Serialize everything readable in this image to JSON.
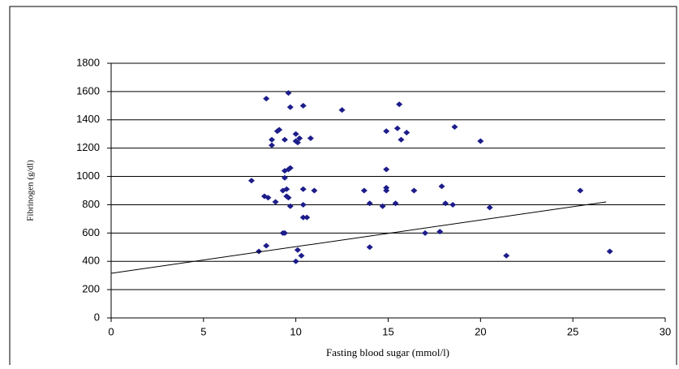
{
  "chart_data": {
    "type": "scatter",
    "x_label": "Fasting blood sugar (mmol/l)",
    "y_label": "Fibrinogen (g/dl)",
    "color": "#1c1c8a",
    "xlim": [
      0,
      30
    ],
    "xticks": [
      0,
      5,
      10,
      15,
      20,
      25,
      30
    ],
    "ylim": [
      0,
      1800
    ],
    "yticks": [
      0,
      200,
      400,
      600,
      800,
      1000,
      1200,
      1400,
      1600,
      1800
    ],
    "grid": true,
    "x": [
      8.4,
      9.6,
      9.7,
      10.4,
      12.5,
      15.6,
      9.0,
      9.1,
      8.7,
      8.7,
      9.4,
      10.0,
      10.0,
      10.2,
      10.8,
      10.1,
      14.9,
      15.5,
      16.0,
      15.7,
      18.6,
      20.0,
      9.4,
      9.6,
      9.7,
      9.4,
      7.6,
      14.9,
      9.3,
      9.5,
      10.4,
      11.0,
      13.7,
      14.9,
      14.9,
      16.4,
      17.9,
      25.4,
      8.3,
      8.5,
      8.9,
      9.5,
      9.6,
      9.7,
      10.4,
      14.0,
      14.7,
      15.4,
      18.1,
      18.5,
      20.5,
      10.4,
      10.6,
      9.3,
      9.4,
      17.0,
      17.8,
      8.0,
      8.4,
      10.1,
      10.0,
      10.3,
      14.0,
      21.4,
      27.0
    ],
    "values": [
      1550,
      1590,
      1490,
      1500,
      1470,
      1510,
      1320,
      1330,
      1260,
      1220,
      1260,
      1300,
      1250,
      1270,
      1270,
      1240,
      1320,
      1340,
      1310,
      1260,
      1350,
      1250,
      1040,
      1050,
      1060,
      990,
      970,
      1050,
      900,
      910,
      910,
      900,
      900,
      920,
      900,
      900,
      930,
      900,
      860,
      850,
      820,
      860,
      850,
      790,
      800,
      810,
      790,
      810,
      810,
      800,
      780,
      710,
      710,
      600,
      600,
      600,
      610,
      470,
      510,
      480,
      400,
      440,
      500,
      440,
      470
    ],
    "trendline": {
      "x": [
        0,
        26.8
      ],
      "values": [
        315,
        820
      ]
    }
  }
}
